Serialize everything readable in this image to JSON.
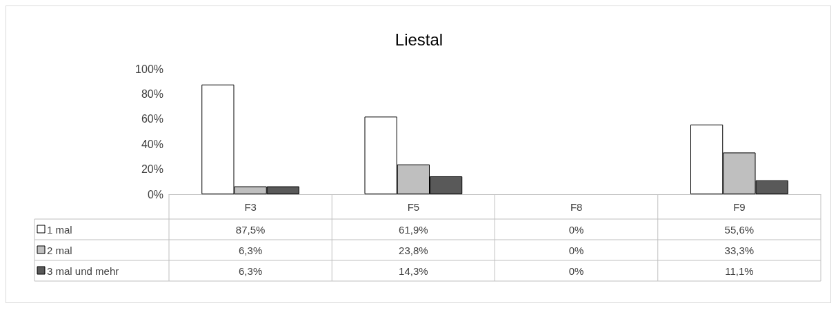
{
  "chart_data": {
    "type": "bar",
    "title": "Liestal",
    "categories": [
      "F3",
      "F5",
      "F8",
      "F9"
    ],
    "series": [
      {
        "name": "1 mal",
        "color": "#ffffff",
        "values": [
          87.5,
          61.9,
          0,
          55.6
        ],
        "value_labels": [
          "87,5%",
          "61,9%",
          "0%",
          "55,6%"
        ]
      },
      {
        "name": "2 mal",
        "color": "#bfbfbf",
        "values": [
          6.3,
          23.8,
          0,
          33.3
        ],
        "value_labels": [
          "6,3%",
          "23,8%",
          "0%",
          "33,3%"
        ]
      },
      {
        "name": "3 mal und mehr",
        "color": "#595959",
        "values": [
          6.3,
          14.3,
          0,
          11.1
        ],
        "value_labels": [
          "6,3%",
          "14,3%",
          "0%",
          "11,1%"
        ]
      }
    ],
    "ylim": [
      0,
      100
    ],
    "yticks": [
      {
        "value": 0,
        "label": "0%"
      },
      {
        "value": 20,
        "label": "20%"
      },
      {
        "value": 40,
        "label": "40%"
      },
      {
        "value": 60,
        "label": "60%"
      },
      {
        "value": 80,
        "label": "80%"
      },
      {
        "value": 100,
        "label": "100%"
      }
    ],
    "grid": false,
    "legend": "bottom left"
  }
}
